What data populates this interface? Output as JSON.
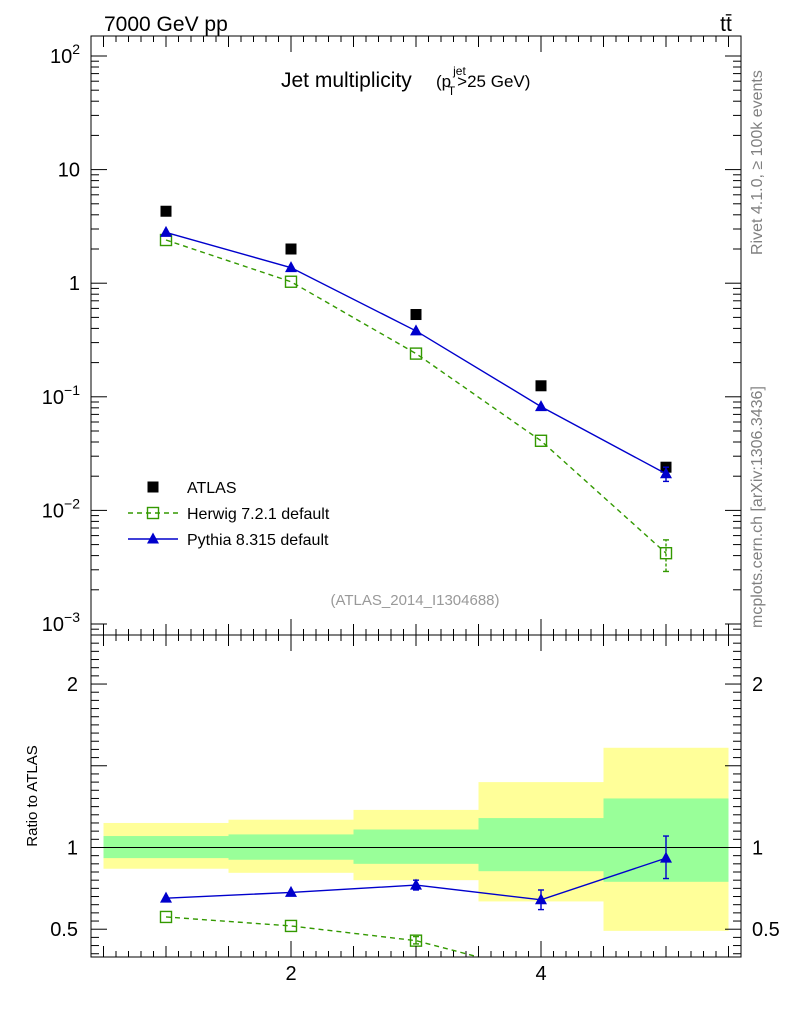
{
  "header": {
    "beam_label": "7000 GeV pp",
    "process_label": "tt̄",
    "side_text_top": "Rivet 4.1.0, ≥ 100k events",
    "side_text_bottom": "mcplots.cern.ch [arXiv:1306.3436]"
  },
  "chart_data": {
    "type": "scatter",
    "title_main": "Jet multiplicity",
    "title_cut_p": "(p",
    "title_cut_sup": "jet",
    "title_cut_sub": "T",
    "title_cut_rest": ">25 GeV)",
    "analysis_id": "(ATLAS_2014_I1304688)",
    "x": [
      1,
      2,
      3,
      4,
      5
    ],
    "xlim": [
      0.4,
      5.6
    ],
    "x_ticks": [
      2,
      4
    ],
    "x_tick_labels": [
      "2",
      "4"
    ],
    "main_panel": {
      "yscale": "log",
      "ylim": [
        0.0008,
        150
      ],
      "y_tick_values": [
        100,
        10,
        1,
        0.1,
        0.01,
        0.001
      ],
      "y_tick_labels": [
        {
          "base": "10",
          "exp": "2"
        },
        {
          "base": "10",
          "exp": ""
        },
        {
          "base": "1",
          "exp": ""
        },
        {
          "base": "10",
          "exp": "−1"
        },
        {
          "base": "10",
          "exp": "−2"
        },
        {
          "base": "10",
          "exp": "−3"
        }
      ],
      "series": [
        {
          "name": "ATLAS",
          "kind": "data",
          "color": "#000000",
          "values": [
            4.3,
            2.0,
            0.53,
            0.125,
            0.024
          ]
        },
        {
          "name": "Herwig 7.2.1 default",
          "kind": "mc",
          "color": "#339900",
          "dashed": true,
          "marker": "open-square",
          "values": [
            2.4,
            1.03,
            0.24,
            0.041,
            0.0042
          ],
          "err_low": [
            0,
            0,
            0,
            0,
            0.0029
          ],
          "err_high": [
            0,
            0,
            0,
            0,
            0.0055
          ]
        },
        {
          "name": "Pythia 8.315 default",
          "kind": "mc",
          "color": "#0000cc",
          "dashed": false,
          "marker": "triangle",
          "values": [
            2.8,
            1.37,
            0.38,
            0.082,
            0.021
          ],
          "err_low": [
            0,
            0,
            0,
            0,
            0.018
          ],
          "err_high": [
            0,
            0,
            0,
            0,
            0.024
          ]
        }
      ]
    },
    "ratio_panel": {
      "ylabel": "Ratio to ATLAS",
      "ylim": [
        0.33,
        2.3
      ],
      "y_tick_values": [
        2,
        1,
        0.5
      ],
      "y_tick_labels": [
        "2",
        "1",
        "0.5"
      ],
      "band_stat": [
        {
          "x0": 0.5,
          "x1": 1.5,
          "lo": 0.935,
          "hi": 1.07
        },
        {
          "x0": 1.5,
          "x1": 2.5,
          "lo": 0.925,
          "hi": 1.08
        },
        {
          "x0": 2.5,
          "x1": 3.5,
          "lo": 0.9,
          "hi": 1.11
        },
        {
          "x0": 3.5,
          "x1": 4.5,
          "lo": 0.855,
          "hi": 1.18
        },
        {
          "x0": 4.5,
          "x1": 5.5,
          "lo": 0.79,
          "hi": 1.3
        }
      ],
      "band_total": [
        {
          "x0": 0.5,
          "x1": 1.5,
          "lo": 0.87,
          "hi": 1.15
        },
        {
          "x0": 1.5,
          "x1": 2.5,
          "lo": 0.845,
          "hi": 1.17
        },
        {
          "x0": 2.5,
          "x1": 3.5,
          "lo": 0.8,
          "hi": 1.23
        },
        {
          "x0": 3.5,
          "x1": 4.5,
          "lo": 0.67,
          "hi": 1.4
        },
        {
          "x0": 4.5,
          "x1": 5.5,
          "lo": 0.49,
          "hi": 1.61
        }
      ],
      "series": [
        {
          "name": "Herwig 7.2.1 default",
          "color": "#339900",
          "dashed": true,
          "marker": "open-square",
          "x": [
            1,
            2,
            3,
            3.5
          ],
          "values": [
            0.575,
            0.52,
            0.43,
            0.33
          ],
          "err_low": [
            0,
            0,
            0.41,
            0
          ],
          "err_high": [
            0,
            0,
            0.455,
            0
          ],
          "marker_mask": [
            1,
            1,
            1,
            0
          ]
        },
        {
          "name": "Pythia 8.315 default",
          "color": "#0000cc",
          "dashed": false,
          "marker": "triangle",
          "x": [
            1,
            2,
            3,
            4,
            5
          ],
          "values": [
            0.69,
            0.725,
            0.77,
            0.68,
            0.935
          ],
          "err_low": [
            0.69,
            0.725,
            0.74,
            0.62,
            0.81
          ],
          "err_high": [
            0.69,
            0.725,
            0.8,
            0.74,
            1.07
          ],
          "marker_mask": [
            1,
            1,
            1,
            1,
            1
          ]
        }
      ]
    },
    "colors": {
      "band_stat": "#99ff99",
      "band_total": "#ffff99"
    }
  }
}
